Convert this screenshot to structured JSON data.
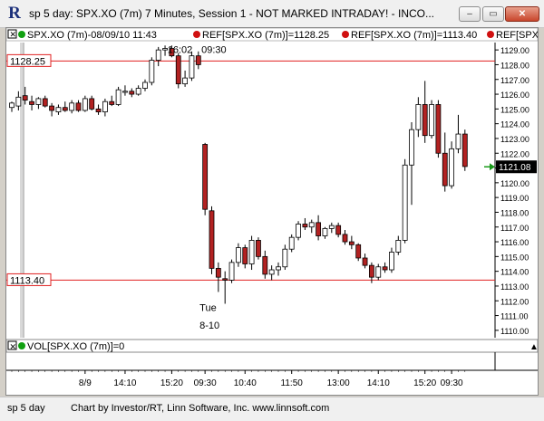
{
  "window": {
    "title": "sp 5 day: SPX.XO (7m) 7 Minutes, Session 1 - NOT MARKED INTRADAY! - INCO...",
    "minimize_glyph": "–",
    "restore_glyph": "▭",
    "close_glyph": "✕",
    "app_icon_glyph": "R"
  },
  "status": {
    "left": "sp 5 day",
    "credit": "Chart by Investor/RT, Linn Software, Inc. www.linnsoft.com"
  },
  "colors": {
    "candle_down": "#b22222",
    "candle_up": "#ffffff",
    "candle_outline": "#000000",
    "ref_line": "#e02020",
    "axis_text": "#000000",
    "price_box": "#000000",
    "green_marker": "#1a9a1a",
    "legend_red_dot": "#d01010",
    "legend_green_dot": "#10a010"
  },
  "chart_data": {
    "type": "candlestick",
    "symbol": "SPX.XO (7m)",
    "header": {
      "text": "SPX.XO (7m)-08/09/10 11:43",
      "ref1": "REF[SPX.XO (7m)]=1128.25",
      "ref2": "REF[SPX.XO (7m)]=1113.40",
      "ref3": "REF[SPX.XO"
    },
    "ylim": [
      1109.5,
      1129.5
    ],
    "yticks": [
      1110,
      1111,
      1112,
      1113,
      1114,
      1115,
      1116,
      1117,
      1118,
      1119,
      1120,
      1121,
      1122,
      1123,
      1124,
      1125,
      1126,
      1127,
      1128,
      1129
    ],
    "ytick_labels": [
      "1110.00",
      "1111.00",
      "1112.00",
      "1113.00",
      "1114.00",
      "1115.00",
      "1116.00",
      "1117.00",
      "1118.00",
      "1119.00",
      "1120.00",
      "1121.00",
      "1122.00",
      "1123.00",
      "1124.00",
      "1125.00",
      "1126.00",
      "1127.00",
      "1128.00",
      "1129.00"
    ],
    "ref_lines": [
      {
        "value": 1128.25,
        "label": "1128.25"
      },
      {
        "value": 1113.4,
        "label": "1113.40"
      }
    ],
    "last_price": {
      "value": 1121.08,
      "label": "1121.08"
    },
    "annotations": [
      {
        "text": "16:02",
        "bar": 25
      },
      {
        "text": "09:30",
        "bar": 29
      },
      {
        "text": "Tue",
        "bar": 29
      },
      {
        "text": "8-10",
        "bar": 29
      }
    ],
    "xticks": [
      {
        "bar": 11,
        "label": "8/9"
      },
      {
        "bar": 17,
        "label": "14:10"
      },
      {
        "bar": 24,
        "label": "15:20"
      },
      {
        "bar": 29,
        "label": "09:30"
      },
      {
        "bar": 35,
        "label": "10:40"
      },
      {
        "bar": 42,
        "label": "11:50"
      },
      {
        "bar": 49,
        "label": "13:00"
      },
      {
        "bar": 55,
        "label": "14:10"
      },
      {
        "bar": 62,
        "label": "15:20"
      },
      {
        "bar": 66,
        "label": "09:30"
      }
    ],
    "candles": [
      {
        "o": 1125.1,
        "h": 1125.5,
        "l": 1124.8,
        "c": 1125.4
      },
      {
        "o": 1125.2,
        "h": 1126.2,
        "l": 1124.9,
        "c": 1125.8
      },
      {
        "o": 1125.9,
        "h": 1126.5,
        "l": 1125.3,
        "c": 1125.6
      },
      {
        "o": 1125.5,
        "h": 1125.9,
        "l": 1124.9,
        "c": 1125.3
      },
      {
        "o": 1125.3,
        "h": 1125.8,
        "l": 1125.0,
        "c": 1125.7
      },
      {
        "o": 1125.7,
        "h": 1125.9,
        "l": 1125.1,
        "c": 1125.2
      },
      {
        "o": 1125.2,
        "h": 1125.4,
        "l": 1124.5,
        "c": 1124.9
      },
      {
        "o": 1124.8,
        "h": 1125.3,
        "l": 1124.6,
        "c": 1125.1
      },
      {
        "o": 1125.1,
        "h": 1125.5,
        "l": 1124.8,
        "c": 1124.9
      },
      {
        "o": 1124.9,
        "h": 1125.6,
        "l": 1124.7,
        "c": 1125.4
      },
      {
        "o": 1125.4,
        "h": 1125.6,
        "l": 1124.8,
        "c": 1124.9
      },
      {
        "o": 1124.9,
        "h": 1125.9,
        "l": 1124.8,
        "c": 1125.7
      },
      {
        "o": 1125.7,
        "h": 1125.9,
        "l": 1124.9,
        "c": 1125.0
      },
      {
        "o": 1125.0,
        "h": 1125.3,
        "l": 1124.6,
        "c": 1124.8
      },
      {
        "o": 1124.8,
        "h": 1125.7,
        "l": 1124.5,
        "c": 1125.5
      },
      {
        "o": 1125.5,
        "h": 1125.9,
        "l": 1125.2,
        "c": 1125.3
      },
      {
        "o": 1125.3,
        "h": 1126.5,
        "l": 1125.2,
        "c": 1126.3
      },
      {
        "o": 1126.2,
        "h": 1126.6,
        "l": 1125.9,
        "c": 1126.2
      },
      {
        "o": 1126.2,
        "h": 1126.4,
        "l": 1125.8,
        "c": 1126.0
      },
      {
        "o": 1126.0,
        "h": 1126.6,
        "l": 1125.9,
        "c": 1126.4
      },
      {
        "o": 1126.4,
        "h": 1127.0,
        "l": 1126.2,
        "c": 1126.8
      },
      {
        "o": 1126.8,
        "h": 1128.5,
        "l": 1126.6,
        "c": 1128.3
      },
      {
        "o": 1128.3,
        "h": 1129.2,
        "l": 1127.9,
        "c": 1129.0
      },
      {
        "o": 1129.0,
        "h": 1129.3,
        "l": 1128.6,
        "c": 1129.1
      },
      {
        "o": 1129.1,
        "h": 1129.3,
        "l": 1128.5,
        "c": 1128.6
      },
      {
        "o": 1128.6,
        "h": 1128.8,
        "l": 1126.4,
        "c": 1126.7
      },
      {
        "o": 1126.7,
        "h": 1127.6,
        "l": 1126.5,
        "c": 1127.1
      },
      {
        "o": 1127.1,
        "h": 1128.9,
        "l": 1126.9,
        "c": 1128.6
      },
      {
        "o": 1128.6,
        "h": 1128.9,
        "l": 1127.7,
        "c": 1128.0
      },
      {
        "o": 1122.6,
        "h": 1122.7,
        "l": 1117.8,
        "c": 1118.2
      },
      {
        "o": 1118.1,
        "h": 1118.4,
        "l": 1113.8,
        "c": 1114.2
      },
      {
        "o": 1114.2,
        "h": 1114.6,
        "l": 1112.6,
        "c": 1113.6
      },
      {
        "o": 1113.5,
        "h": 1114.0,
        "l": 1111.8,
        "c": 1113.4
      },
      {
        "o": 1113.4,
        "h": 1114.8,
        "l": 1113.2,
        "c": 1114.6
      },
      {
        "o": 1114.6,
        "h": 1115.9,
        "l": 1114.3,
        "c": 1115.6
      },
      {
        "o": 1115.6,
        "h": 1115.8,
        "l": 1114.2,
        "c": 1114.5
      },
      {
        "o": 1114.5,
        "h": 1116.4,
        "l": 1114.1,
        "c": 1116.1
      },
      {
        "o": 1116.1,
        "h": 1116.3,
        "l": 1114.8,
        "c": 1115.0
      },
      {
        "o": 1115.0,
        "h": 1115.4,
        "l": 1113.5,
        "c": 1113.8
      },
      {
        "o": 1113.8,
        "h": 1114.4,
        "l": 1113.4,
        "c": 1114.1
      },
      {
        "o": 1114.1,
        "h": 1114.6,
        "l": 1113.7,
        "c": 1114.3
      },
      {
        "o": 1114.3,
        "h": 1115.8,
        "l": 1114.1,
        "c": 1115.5
      },
      {
        "o": 1115.5,
        "h": 1116.5,
        "l": 1115.3,
        "c": 1116.3
      },
      {
        "o": 1116.3,
        "h": 1117.4,
        "l": 1116.1,
        "c": 1117.2
      },
      {
        "o": 1117.2,
        "h": 1117.6,
        "l": 1116.8,
        "c": 1117.0
      },
      {
        "o": 1117.0,
        "h": 1117.5,
        "l": 1116.6,
        "c": 1117.3
      },
      {
        "o": 1117.3,
        "h": 1117.8,
        "l": 1116.1,
        "c": 1116.4
      },
      {
        "o": 1116.4,
        "h": 1117.0,
        "l": 1116.2,
        "c": 1116.9
      },
      {
        "o": 1116.9,
        "h": 1117.3,
        "l": 1116.6,
        "c": 1117.1
      },
      {
        "o": 1117.1,
        "h": 1117.3,
        "l": 1116.3,
        "c": 1116.5
      },
      {
        "o": 1116.5,
        "h": 1116.8,
        "l": 1115.8,
        "c": 1116.0
      },
      {
        "o": 1116.0,
        "h": 1116.4,
        "l": 1115.5,
        "c": 1115.8
      },
      {
        "o": 1115.8,
        "h": 1115.9,
        "l": 1114.7,
        "c": 1114.9
      },
      {
        "o": 1114.9,
        "h": 1115.2,
        "l": 1114.2,
        "c": 1114.4
      },
      {
        "o": 1114.4,
        "h": 1114.6,
        "l": 1113.2,
        "c": 1113.6
      },
      {
        "o": 1113.6,
        "h": 1114.5,
        "l": 1113.4,
        "c": 1114.3
      },
      {
        "o": 1114.3,
        "h": 1114.6,
        "l": 1113.9,
        "c": 1114.1
      },
      {
        "o": 1114.1,
        "h": 1115.6,
        "l": 1113.9,
        "c": 1115.3
      },
      {
        "o": 1115.3,
        "h": 1116.4,
        "l": 1115.1,
        "c": 1116.1
      },
      {
        "o": 1116.1,
        "h": 1121.6,
        "l": 1115.9,
        "c": 1121.2
      },
      {
        "o": 1121.2,
        "h": 1124.1,
        "l": 1118.5,
        "c": 1123.6
      },
      {
        "o": 1123.6,
        "h": 1125.8,
        "l": 1123.1,
        "c": 1125.3
      },
      {
        "o": 1125.3,
        "h": 1126.9,
        "l": 1122.7,
        "c": 1123.2
      },
      {
        "o": 1123.2,
        "h": 1125.6,
        "l": 1123.0,
        "c": 1125.3
      },
      {
        "o": 1125.3,
        "h": 1125.6,
        "l": 1121.7,
        "c": 1122.0
      },
      {
        "o": 1122.0,
        "h": 1123.4,
        "l": 1119.4,
        "c": 1119.8
      },
      {
        "o": 1119.8,
        "h": 1122.8,
        "l": 1119.6,
        "c": 1122.3
      },
      {
        "o": 1122.3,
        "h": 1124.6,
        "l": 1122.0,
        "c": 1123.3
      },
      {
        "o": 1123.3,
        "h": 1123.6,
        "l": 1120.8,
        "c": 1121.1
      }
    ],
    "volume": {
      "label": "VOL[SPX.XO (7m)]=0",
      "value": 0
    }
  }
}
